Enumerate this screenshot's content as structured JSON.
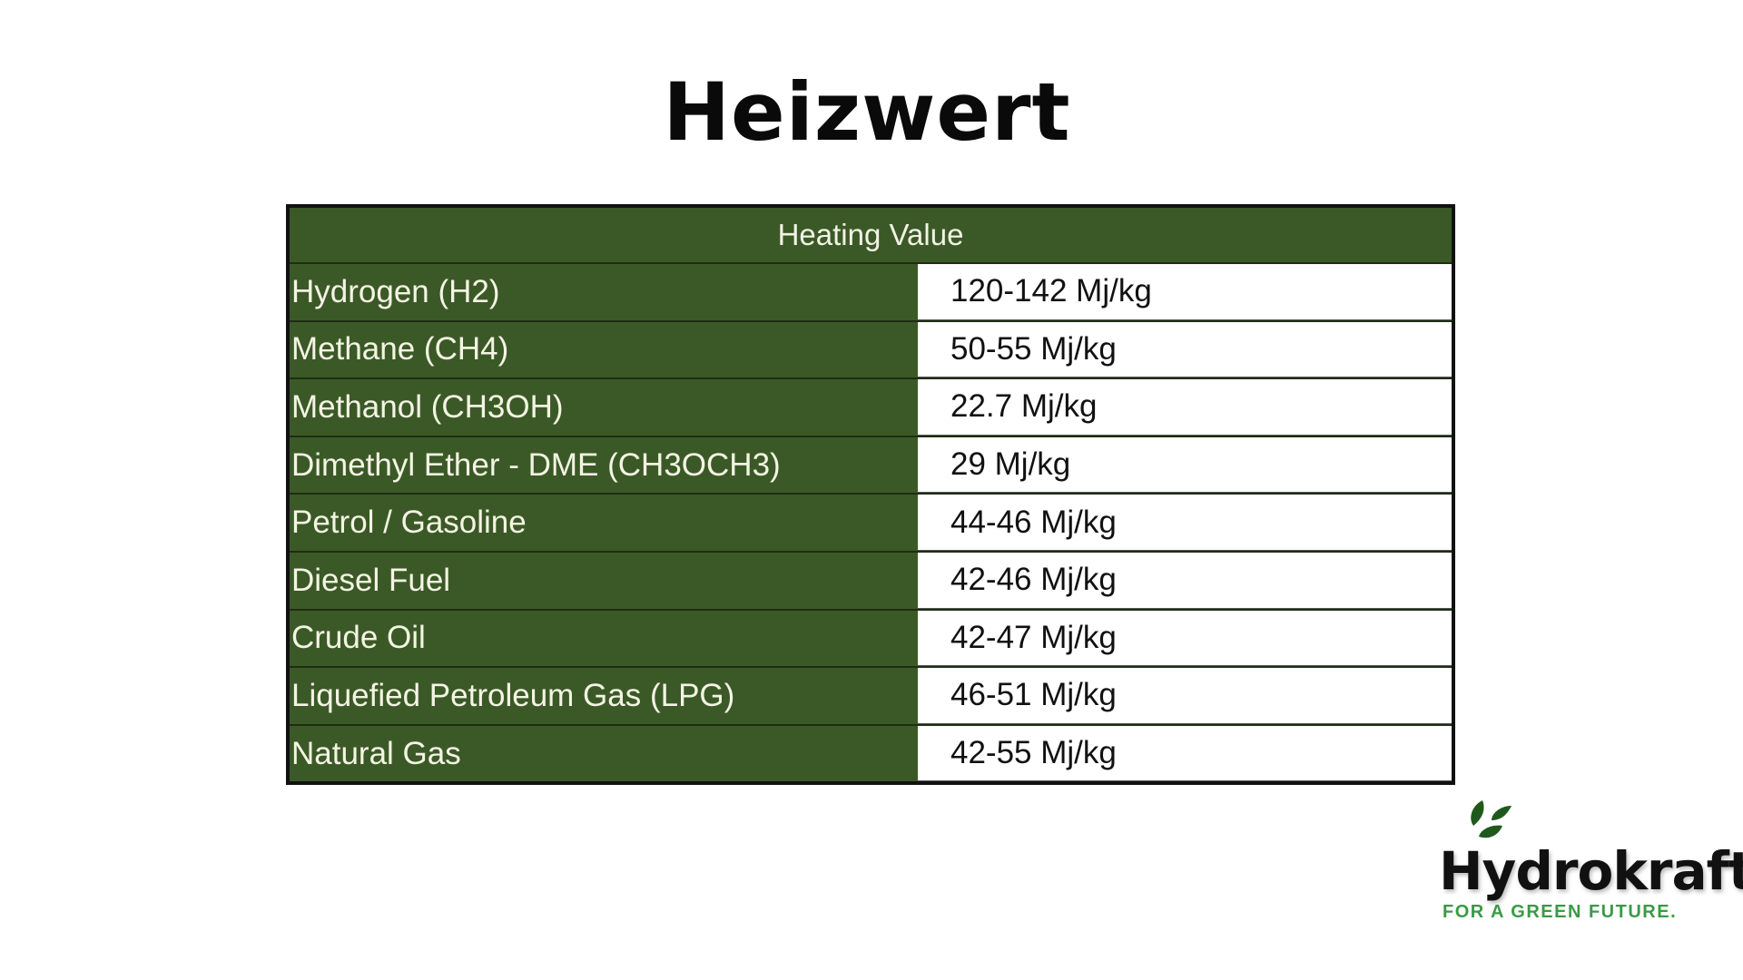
{
  "title": "Heizwert",
  "table": {
    "header": "Heating Value",
    "rows": [
      {
        "label": "Hydrogen (H2)",
        "value": "120-142 Mj/kg"
      },
      {
        "label": "Methane (CH4)",
        "value": "50-55 Mj/kg"
      },
      {
        "label": "Methanol (CH3OH)",
        "value": "22.7 Mj/kg"
      },
      {
        "label": "Dimethyl Ether - DME (CH3OCH3)",
        "value": "29 Mj/kg"
      },
      {
        "label": "Petrol / Gasoline",
        "value": "44-46 Mj/kg"
      },
      {
        "label": "Diesel Fuel",
        "value": "42-46 Mj/kg"
      },
      {
        "label": "Crude Oil",
        "value": "42-47 Mj/kg"
      },
      {
        "label": "Liquefied Petroleum Gas (LPG)",
        "value": "46-51 Mj/kg"
      },
      {
        "label": "Natural Gas",
        "value": "42-55 Mj/kg"
      }
    ]
  },
  "logo": {
    "name": "Hydrokraft",
    "tagline": "FOR A GREEN FUTURE.",
    "icon": "leaves-icon"
  },
  "colors": {
    "header_green": "#3b5927",
    "leaf_green": "#1f5a1c",
    "tagline_green": "#3b9a45"
  }
}
